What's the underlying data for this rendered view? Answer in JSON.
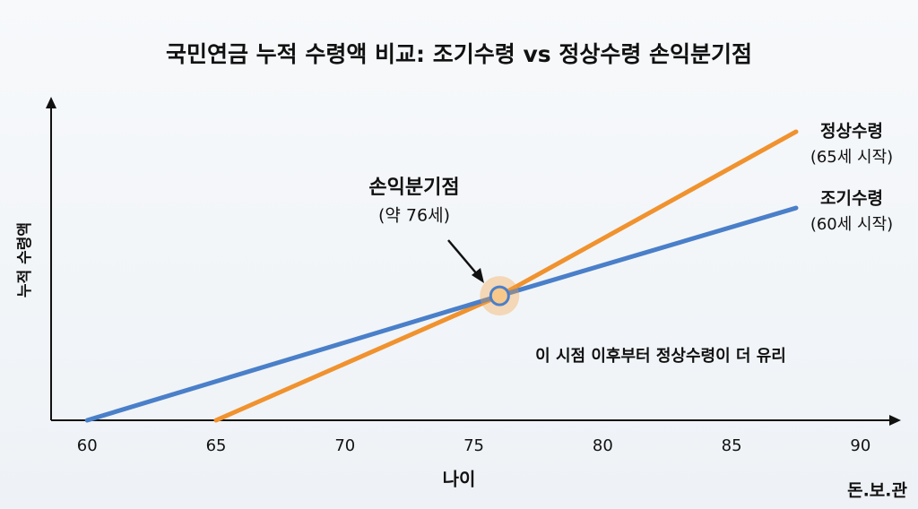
{
  "chart_data": {
    "type": "line",
    "title": "국민연금 누적 수령액 비교: 조기수령 vs 정상수령 손익분기점",
    "x_label": "나이",
    "y_label": "누적 수령액",
    "xlim": [
      58.6,
      91.5
    ],
    "xticks": [
      60,
      65,
      70,
      75,
      80,
      85,
      90
    ],
    "ylim": [
      0,
      100
    ],
    "series": [
      {
        "name": "정상수령",
        "note": "(65세 시작)",
        "color": "#f0922e",
        "x": [
          65,
          76,
          87.5
        ],
        "values": [
          0,
          38.7,
          89.7
        ]
      },
      {
        "name": "조기수령",
        "note": "(60세 시작)",
        "color": "#4a7fc9",
        "x": [
          60,
          76,
          87.5
        ],
        "values": [
          0,
          38.7,
          66
        ]
      }
    ],
    "breakeven": {
      "label": "손익분기점",
      "sublabel": "(약 76세)",
      "x": 76,
      "y": 38.7
    },
    "annotation": "이 시점 이후부터 정상수령이 더 유리",
    "watermark": "돈.보.관"
  }
}
